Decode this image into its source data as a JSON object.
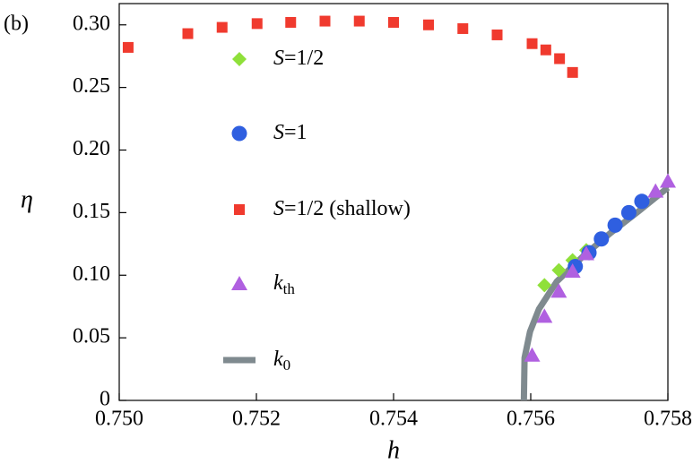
{
  "chart_data": {
    "type": "scatter",
    "panel_label": "(b)",
    "x_label": "h",
    "y_label": "η",
    "xlim": [
      0.75,
      0.758
    ],
    "ylim": [
      0,
      0.317
    ],
    "xticks": [
      {
        "value": 0.75,
        "label": "0.750"
      },
      {
        "value": 0.752,
        "label": "0.752"
      },
      {
        "value": 0.754,
        "label": "0.754"
      },
      {
        "value": 0.756,
        "label": "0.756"
      },
      {
        "value": 0.758,
        "label": "0.758"
      }
    ],
    "yticks": [
      0,
      0.05,
      {
        "value": 0.1,
        "label": "0.10"
      },
      0.15,
      {
        "value": 0.2,
        "label": "0.20"
      },
      0.25,
      {
        "value": 0.3,
        "label": "0.30"
      }
    ],
    "series": [
      {
        "name": "S=1/2",
        "color": "#8fe03a",
        "marker": "diamond",
        "x": [
          0.7562,
          0.75641,
          0.75661,
          0.75681
        ],
        "values": [
          0.092,
          0.104,
          0.112,
          0.12
        ]
      },
      {
        "name": "S=1",
        "color": "#2f5fe0",
        "marker": "circle",
        "x": [
          0.75665,
          0.75685,
          0.75703,
          0.75723,
          0.75743,
          0.75762
        ],
        "values": [
          0.107,
          0.118,
          0.129,
          0.14,
          0.15,
          0.159
        ]
      },
      {
        "name": "S=1/2 (shallow)",
        "color": "#f03a2e",
        "marker": "square",
        "x": [
          0.75013,
          0.751,
          0.7515,
          0.75201,
          0.7525,
          0.753,
          0.7535,
          0.754,
          0.75451,
          0.75501,
          0.75551,
          0.75602,
          0.75622,
          0.75642,
          0.75661
        ],
        "values": [
          0.282,
          0.293,
          0.298,
          0.301,
          0.302,
          0.303,
          0.303,
          0.302,
          0.3,
          0.297,
          0.292,
          0.285,
          0.28,
          0.273,
          0.262
        ]
      },
      {
        "name": "kth",
        "color": "#b060e0",
        "marker": "triangle",
        "x": [
          0.75602,
          0.7562,
          0.75641,
          0.75661,
          0.75681,
          0.75782,
          0.758
        ],
        "values": [
          0.036,
          0.067,
          0.087,
          0.103,
          0.117,
          0.167,
          0.175
        ]
      },
      {
        "name": "k0",
        "color": "#7f8a8f",
        "marker": "line",
        "x": [
          0.7559,
          0.75591,
          0.75599,
          0.75612,
          0.75638,
          0.75678,
          0.75717,
          0.75757,
          0.758
        ],
        "values": [
          0,
          0.034,
          0.055,
          0.073,
          0.095,
          0.116,
          0.134,
          0.151,
          0.17
        ]
      }
    ]
  }
}
